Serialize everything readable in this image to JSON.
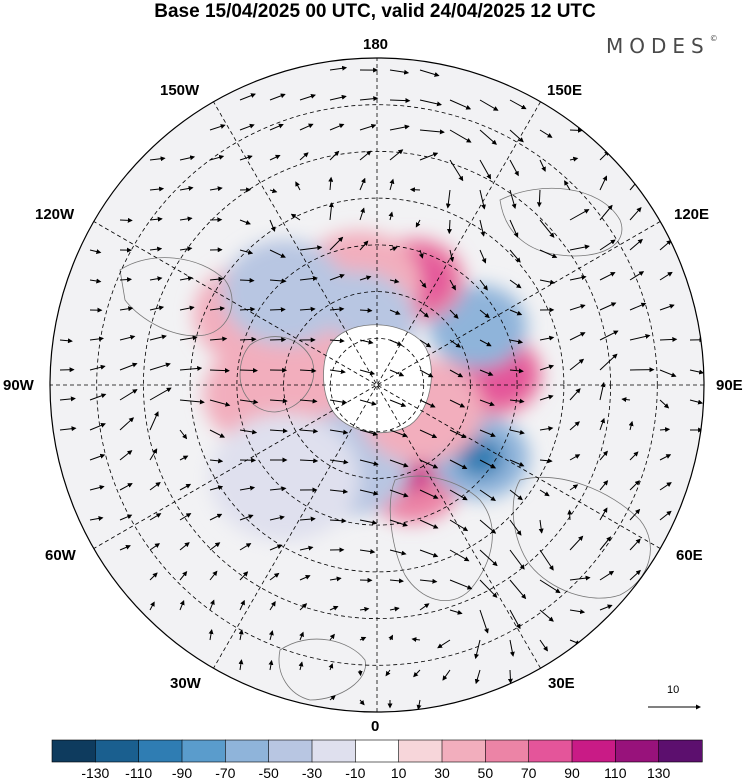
{
  "title": "Base 15/04/2025 00 UTC, valid 24/04/2025 12 UTC",
  "brand": {
    "text": "MODES",
    "mark": "©"
  },
  "longitude_labels": {
    "top": "180",
    "bottom": "0",
    "w150": "150W",
    "e150": "150E",
    "w120": "120W",
    "e120": "120E",
    "w90": "90W",
    "e90": "90E",
    "w60": "60W",
    "e60": "60E",
    "w30": "30W",
    "e30": "30E"
  },
  "reference_vector": {
    "value": "10",
    "icon": "arrow-right-icon"
  },
  "colorbar": {
    "labels": [
      "-130",
      "-110",
      "-90",
      "-70",
      "-50",
      "-30",
      "-10",
      "10",
      "30",
      "50",
      "70",
      "90",
      "110",
      "130"
    ],
    "colors": [
      "#0e3b5e",
      "#1a5f8f",
      "#2f7db3",
      "#5a9ccc",
      "#8fb4da",
      "#b8c6e2",
      "#dfe0ee",
      "#ffffff",
      "#f7d6da",
      "#f2aebd",
      "#ec84a6",
      "#e4559a",
      "#c91b86",
      "#98127b",
      "#5c0f6e"
    ]
  },
  "anomalies": [
    {
      "lon": 20,
      "colat": 22,
      "level": 3,
      "sign": 1
    },
    {
      "lon": 20,
      "colat": 20,
      "level": 5,
      "sign": 1
    },
    {
      "lon": 55,
      "colat": 27,
      "level": 3,
      "sign": -1
    },
    {
      "lon": 55,
      "colat": 27,
      "level": 5,
      "sign": -1
    },
    {
      "lon": 95,
      "colat": 25,
      "level": 3,
      "sign": 1
    },
    {
      "lon": 95,
      "colat": 26,
      "level": 4,
      "sign": 1
    },
    {
      "lon": 120,
      "colat": 25,
      "level": 3,
      "sign": -1
    },
    {
      "lon": 160,
      "colat": 24,
      "level": 3,
      "sign": 1
    },
    {
      "lon": 160,
      "colat": 24,
      "level": 4,
      "sign": 1
    },
    {
      "lon": -170,
      "colat": 22,
      "level": 2,
      "sign": 1
    },
    {
      "lon": -160,
      "colat": 14,
      "level": 2,
      "sign": -1
    },
    {
      "lon": -100,
      "colat": 18,
      "level": 2,
      "sign": 1
    },
    {
      "lon": -85,
      "colat": 24,
      "level": 2,
      "sign": 1
    },
    {
      "lon": -120,
      "colat": 30,
      "level": 2,
      "sign": 1
    },
    {
      "lon": -135,
      "colat": 28,
      "level": 2,
      "sign": -1
    },
    {
      "lon": -60,
      "colat": 14,
      "level": 2,
      "sign": 1
    },
    {
      "lon": -20,
      "colat": 18,
      "level": 2,
      "sign": -1
    },
    {
      "lon": 60,
      "colat": 11,
      "level": 2,
      "sign": 1
    },
    {
      "lon": -45,
      "colat": 28,
      "level": 1,
      "sign": -1
    }
  ]
}
